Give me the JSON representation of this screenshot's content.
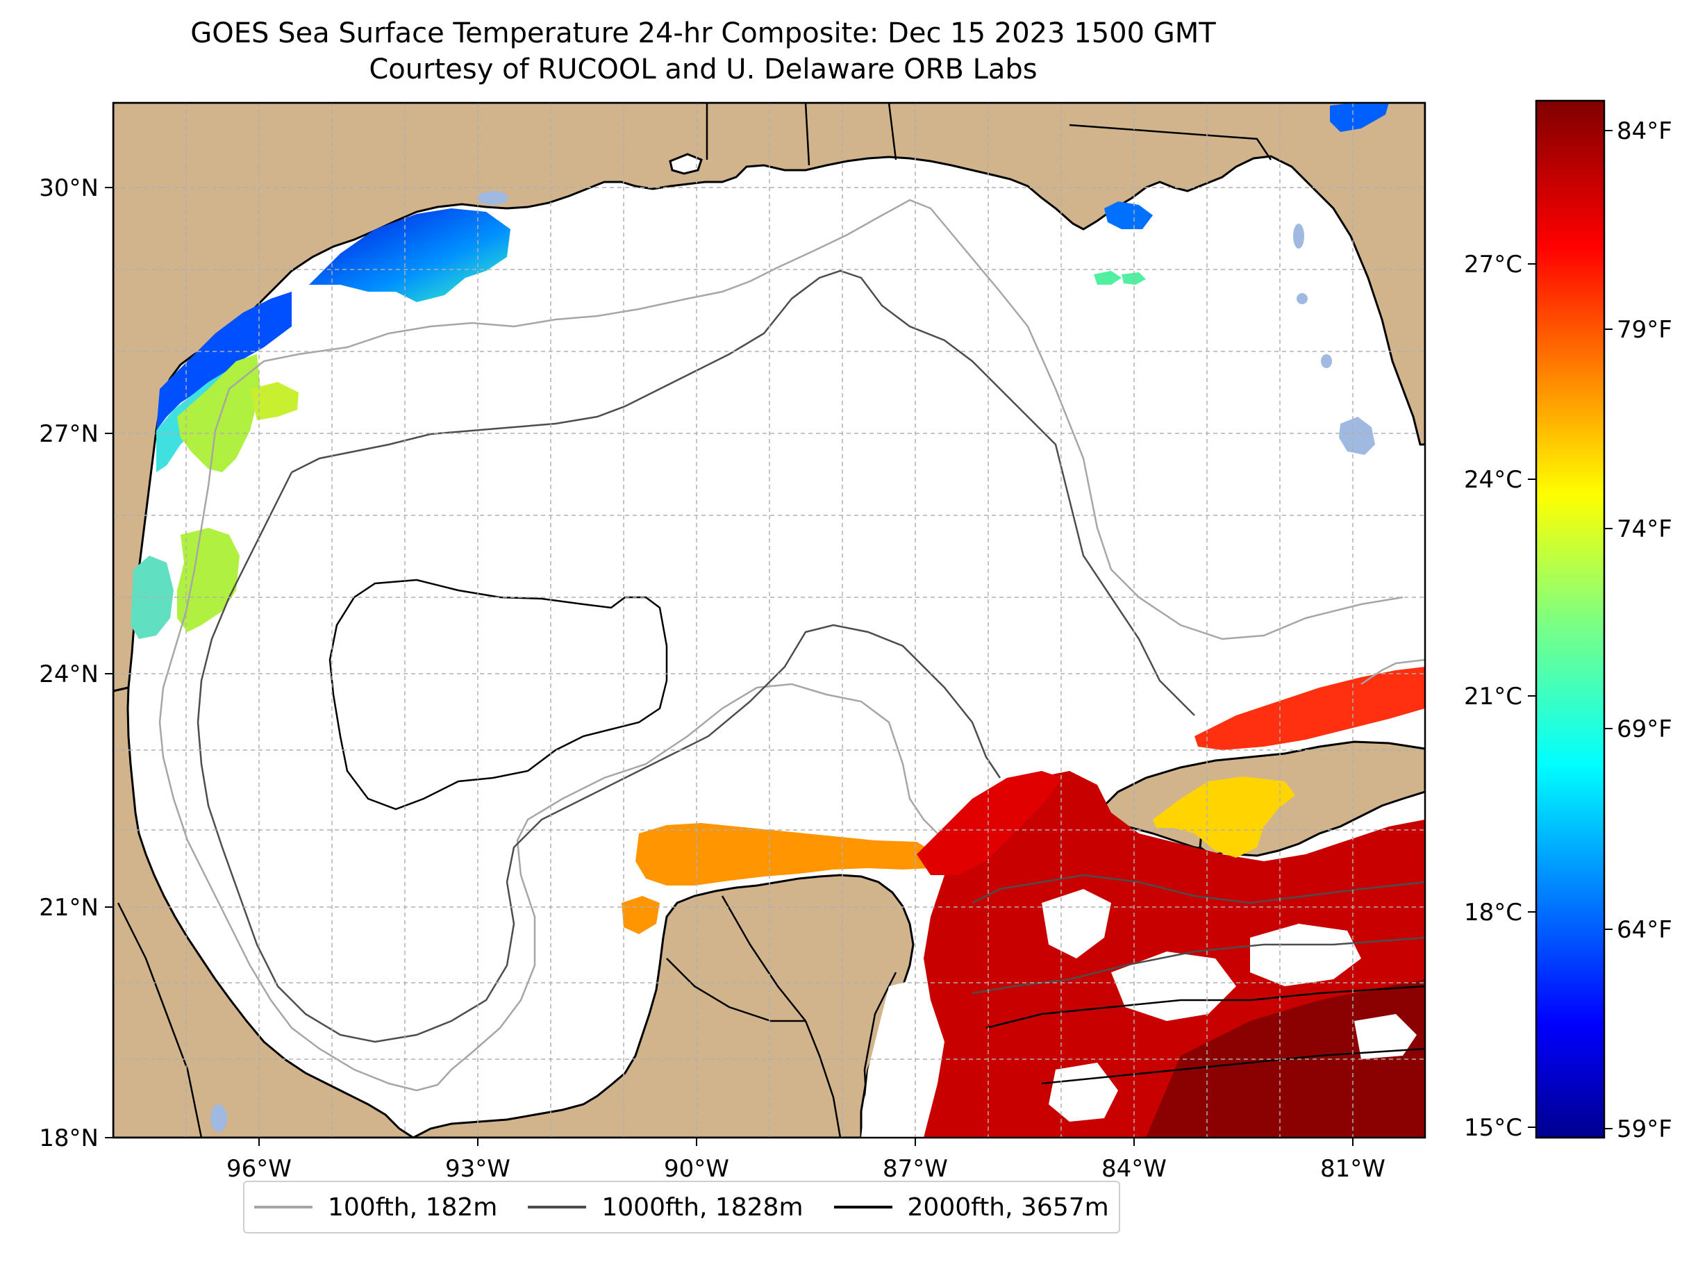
{
  "title": {
    "line1": "GOES Sea Surface Temperature 24-hr Composite: Dec 15 2023 1500 GMT",
    "line2": "Courtesy of RUCOOL and U. Delaware ORB Labs"
  },
  "map": {
    "lon_ticks": [
      "96°W",
      "93°W",
      "90°W",
      "87°W",
      "84°W",
      "81°W"
    ],
    "lat_ticks": [
      "30°N",
      "27°N",
      "24°N",
      "21°N",
      "18°N"
    ],
    "land_color": "#d2b48c",
    "water_color": "#ffffff",
    "inland_water_color": "#9fb9e0",
    "extent": {
      "lon": [
        -98,
        -80
      ],
      "lat": [
        18,
        31
      ]
    }
  },
  "colorbar": {
    "celsius_ticks": [
      "27°C",
      "24°C",
      "21°C",
      "18°C",
      "15°C"
    ],
    "fahrenheit_ticks": [
      "84°F",
      "79°F",
      "74°F",
      "69°F",
      "64°F",
      "59°F"
    ],
    "colormap": "jet",
    "range_f": [
      59,
      85
    ]
  },
  "legend": [
    {
      "label": "100fth, 182m",
      "color": "#a6a6a6"
    },
    {
      "label": "1000fth, 1828m",
      "color": "#4d4d4d"
    },
    {
      "label": "2000fth, 3657m",
      "color": "#000000"
    }
  ]
}
